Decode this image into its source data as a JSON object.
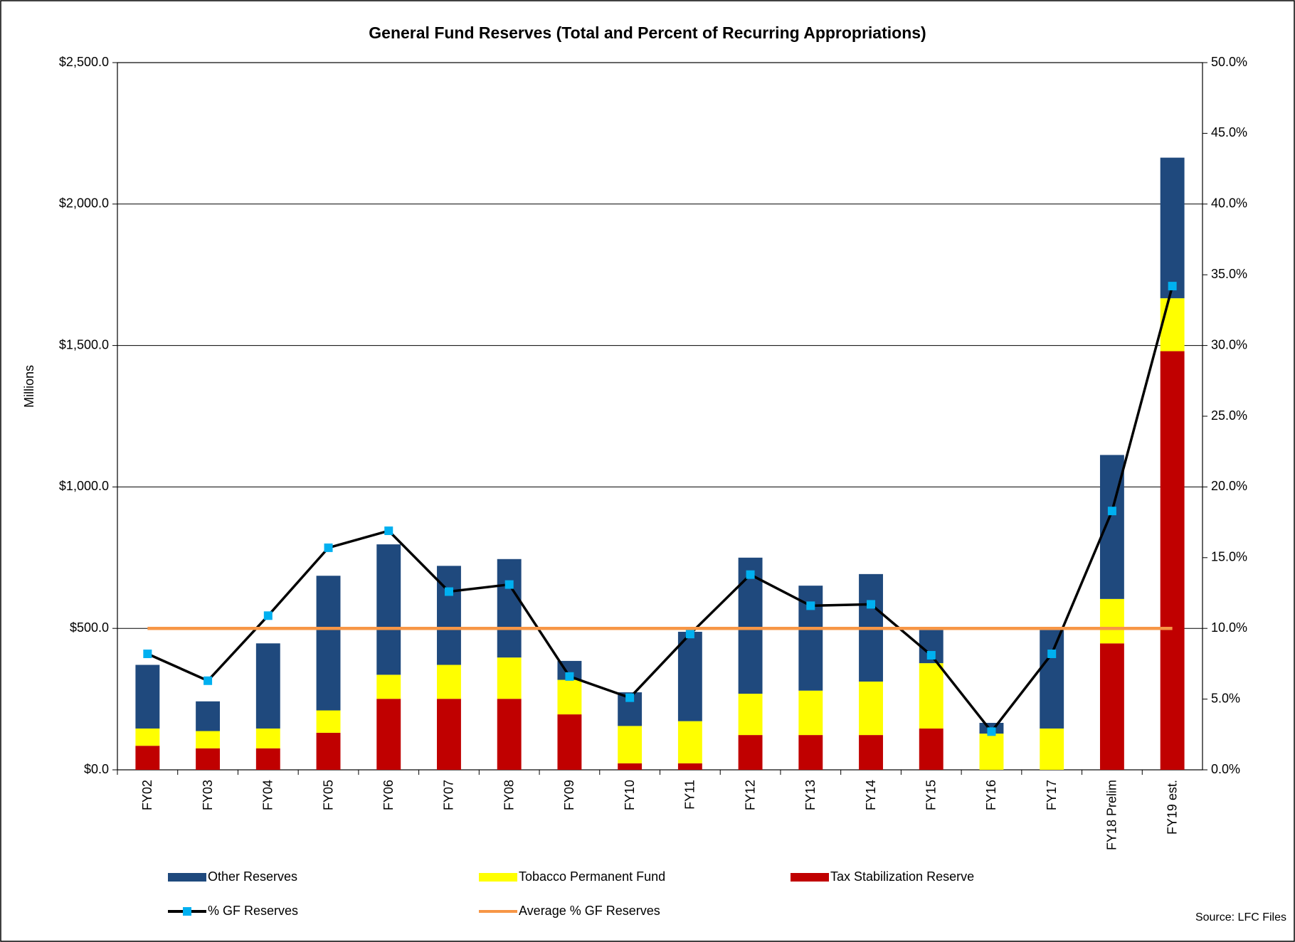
{
  "chart_data": {
    "type": "bar",
    "stacked": true,
    "title": "General Fund Reserves (Total and Percent of Recurring Appropriations)",
    "y_label": "Millions",
    "source": "Source: LFC Files",
    "categories": [
      "FY02",
      "FY03",
      "FY04",
      "FY05",
      "FY06",
      "FY07",
      "FY08",
      "FY09",
      "FY10",
      "FY11",
      "FY12",
      "FY13",
      "FY14",
      "FY15",
      "FY16",
      "FY17",
      "FY18 Prelim",
      "FY19 est."
    ],
    "series": [
      {
        "name": "Other Reserves",
        "type": "bar",
        "color": "#1f497d",
        "values": [
          225,
          105,
          301,
          476,
          461,
          350,
          348,
          67,
          119,
          316,
          481,
          371,
          380,
          117,
          38,
          348,
          509,
          497
        ]
      },
      {
        "name": "Tobacco Permanent Fund",
        "type": "bar",
        "color": "#ffff00",
        "values": [
          61,
          61,
          70,
          79,
          85,
          120,
          146,
          122,
          132,
          149,
          146,
          157,
          189,
          231,
          128,
          146,
          157,
          187
        ]
      },
      {
        "name": "Tax Stabilization Reserve",
        "type": "bar",
        "color": "#c00000",
        "values": [
          85,
          76,
          76,
          131,
          251,
          251,
          251,
          196,
          23,
          23,
          123,
          123,
          123,
          146,
          0,
          0,
          447,
          1480
        ]
      },
      {
        "name": "% GF Reserves",
        "type": "line",
        "axis": "y2",
        "color": "#000000",
        "marker_color": "#00b0f0",
        "values": [
          8.2,
          6.3,
          10.9,
          15.7,
          16.9,
          12.6,
          13.1,
          6.6,
          5.1,
          9.6,
          13.8,
          11.6,
          11.7,
          8.1,
          2.7,
          8.2,
          18.3,
          34.2
        ]
      },
      {
        "name": "Average % GF Reserves",
        "type": "line",
        "axis": "y2",
        "color": "#f79646",
        "values": [
          10,
          10,
          10,
          10,
          10,
          10,
          10,
          10,
          10,
          10,
          10,
          10,
          10,
          10,
          10,
          10,
          10,
          10
        ]
      }
    ],
    "stack_order": [
      2,
      1,
      0
    ],
    "ylim": [
      0,
      2500
    ],
    "yticks": [
      {
        "value": 0,
        "label": "$0.0"
      },
      {
        "value": 500,
        "label": "$500.0"
      },
      {
        "value": 1000,
        "label": "$1,000.0"
      },
      {
        "value": 1500,
        "label": "$1,500.0"
      },
      {
        "value": 2000,
        "label": "$2,000.0"
      },
      {
        "value": 2500,
        "label": "$2,500.0"
      }
    ],
    "y2lim": [
      0,
      50
    ],
    "y2ticks": [
      {
        "value": 0,
        "label": "0.0%"
      },
      {
        "value": 5,
        "label": "5.0%"
      },
      {
        "value": 10,
        "label": "10.0%"
      },
      {
        "value": 15,
        "label": "15.0%"
      },
      {
        "value": 20,
        "label": "20.0%"
      },
      {
        "value": 25,
        "label": "25.0%"
      },
      {
        "value": 30,
        "label": "30.0%"
      },
      {
        "value": 35,
        "label": "35.0%"
      },
      {
        "value": 40,
        "label": "40.0%"
      },
      {
        "value": 45,
        "label": "45.0%"
      },
      {
        "value": 50,
        "label": "50.0%"
      }
    ],
    "grid": true,
    "legend": "bottom"
  }
}
